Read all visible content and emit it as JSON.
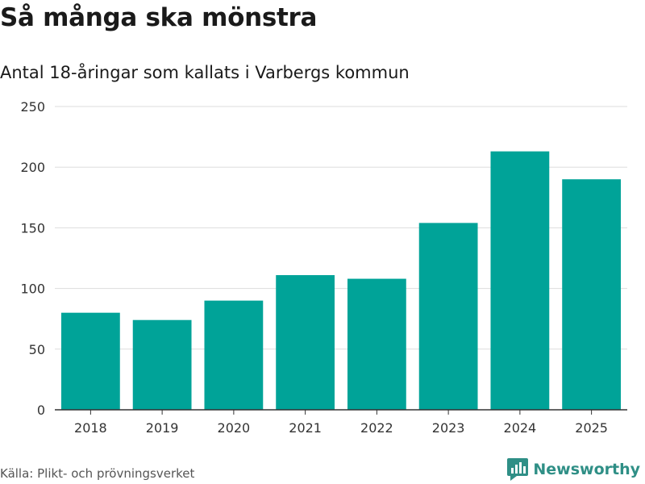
{
  "header": {
    "title": "Så många ska mönstra",
    "subtitle": "Antal 18-åringar som kallats i Varbergs kommun"
  },
  "footer": {
    "source": "Källa: Plikt- och prövningsverket",
    "brand": "Newsworthy",
    "brand_icon": "newsworthy-logo-icon"
  },
  "colors": {
    "bar": "#00a398",
    "gridline": "#dddddd",
    "axis": "#333333",
    "brand": "#2f8f86"
  },
  "chart_data": {
    "type": "bar",
    "title": "Så många ska mönstra",
    "subtitle": "Antal 18-åringar som kallats i Varbergs kommun",
    "xlabel": "",
    "ylabel": "",
    "categories": [
      "2018",
      "2019",
      "2020",
      "2021",
      "2022",
      "2023",
      "2024",
      "2025"
    ],
    "values": [
      80,
      74,
      90,
      111,
      108,
      154,
      213,
      190
    ],
    "ylim": [
      0,
      250
    ],
    "yticks": [
      0,
      50,
      100,
      150,
      200,
      250
    ],
    "grid": true,
    "legend": "none"
  }
}
